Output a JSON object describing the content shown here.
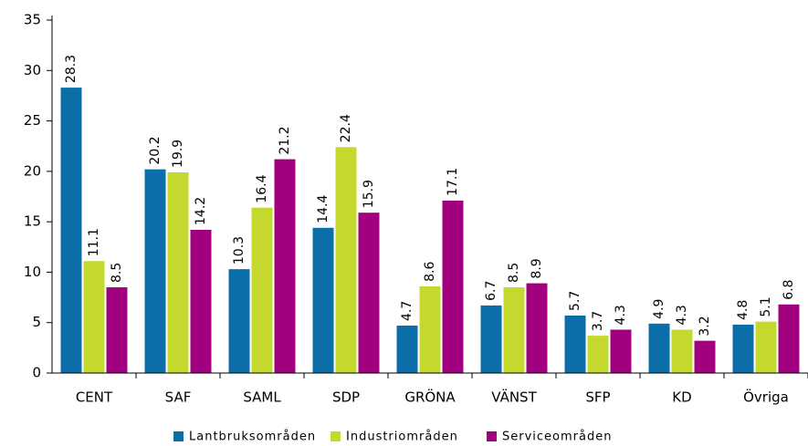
{
  "chart_data": {
    "type": "bar",
    "categories": [
      "CENT",
      "SAF",
      "SAML",
      "SDP",
      "GRÖNA",
      "VÄNST",
      "SFP",
      "KD",
      "Övriga"
    ],
    "series": [
      {
        "name": "Lantbruksområden",
        "color": "#0b6ea8",
        "values": [
          28.3,
          20.2,
          10.3,
          14.4,
          4.7,
          6.7,
          5.7,
          4.9,
          4.8
        ]
      },
      {
        "name": "Industriområden",
        "color": "#c4d82e",
        "values": [
          11.1,
          19.9,
          16.4,
          22.4,
          8.6,
          8.5,
          3.7,
          4.3,
          5.1
        ]
      },
      {
        "name": "Serviceområden",
        "color": "#a1007f",
        "values": [
          8.5,
          14.2,
          21.2,
          15.9,
          17.1,
          8.9,
          4.3,
          3.2,
          6.8
        ]
      }
    ],
    "ylim": [
      0,
      35
    ],
    "yticks": [
      0,
      5,
      10,
      15,
      20,
      25,
      30,
      35
    ],
    "grid": false,
    "legend": "bottom"
  }
}
